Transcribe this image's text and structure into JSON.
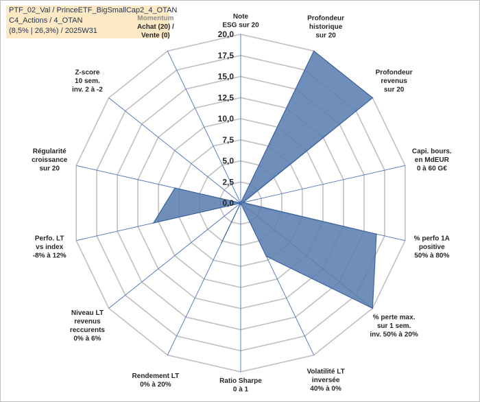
{
  "header": {
    "line1": "PTF_02_Val / PrinceETF_BigSmallCap2_4_OTAN",
    "line2": "C4_Actions / 4_OTAN",
    "line3": "(8,5% | 26,3%) / 2025W31"
  },
  "colors": {
    "fill": "#5b7fb0",
    "stroke": "#3e63a0",
    "grid": "#bfbfbf",
    "spoke": "#4a72b8",
    "header_bg": "#fde9c4"
  },
  "chart_data": {
    "type": "radar",
    "rmin": 0,
    "rmax": 20,
    "ticks": [
      0,
      2.5,
      5,
      7.5,
      10,
      12.5,
      15,
      17.5,
      20
    ],
    "tick_labels": [
      "0,0",
      "2,5",
      "5,0",
      "7,5",
      "10,0",
      "12,5",
      "15,0",
      "17,5",
      "20,0"
    ],
    "grid": true,
    "axes": [
      {
        "label": [
          "Note",
          "ESG sur 20"
        ],
        "value": 0
      },
      {
        "label": [
          "Profondeur",
          "historique",
          "sur 20"
        ],
        "value": 20
      },
      {
        "label": [
          "Profondeur",
          "revenus",
          "sur 20"
        ],
        "value": 20
      },
      {
        "label": [
          "Capi. bours.",
          "en MdEUR",
          "0 à 60 G€"
        ],
        "value": 0.3
      },
      {
        "label": [
          "% perfo 1A",
          "positive",
          "50% à 80%"
        ],
        "value": 16.5
      },
      {
        "label": [
          "% perte max.",
          "sur 1 sem.",
          "inv. 50% à 20%"
        ],
        "value": 20
      },
      {
        "label": [
          "Volatilité LT",
          "inversée",
          "40% à 0%"
        ],
        "value": 7
      },
      {
        "label": [
          "Ratio Sharpe",
          "0 à 1"
        ],
        "value": 0
      },
      {
        "label": [
          "Rendement LT",
          "0% à 20%"
        ],
        "value": 5.2
      },
      {
        "label": [
          "Niveau LT",
          "revenus",
          "reccurents",
          "0% à 6%"
        ],
        "value": 0
      },
      {
        "label": [
          "Perfo. LT",
          "vs index",
          "-8% à 12%"
        ],
        "value": 10.6
      },
      {
        "label": [
          "Régularité",
          "croissance",
          "sur 20"
        ],
        "value": 8
      },
      {
        "label": [
          "Z-score",
          "10 sem.",
          "inv. 2 à -2"
        ],
        "value": 0
      },
      {
        "label": [
          "Momentum",
          "Achat (20) /",
          "Vente (0)"
        ],
        "value": 0
      }
    ]
  }
}
